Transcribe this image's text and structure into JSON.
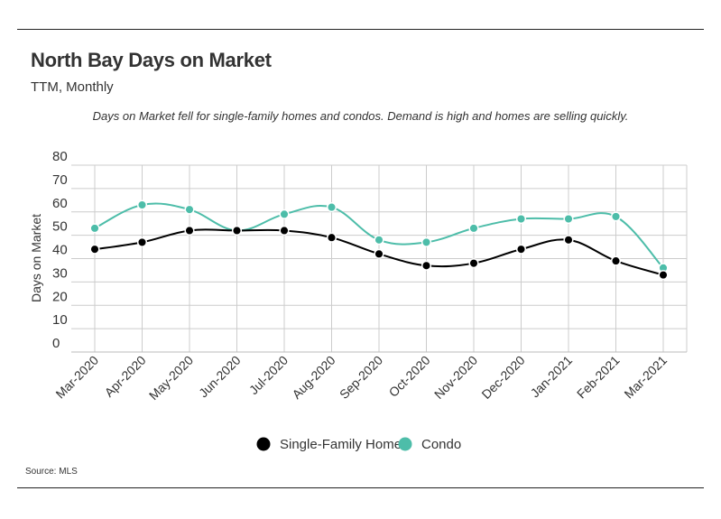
{
  "header": {
    "title": "North Bay Days on Market",
    "subtitle": "TTM, Monthly",
    "note": "Days on Market fell for single-family homes and condos. Demand is high and homes are selling quickly."
  },
  "footer": {
    "source": "Source:  MLS"
  },
  "chart_data": {
    "type": "line",
    "title": "North Bay Days on Market",
    "subtitle": "TTM, Monthly",
    "xlabel": "",
    "ylabel": "Days on Market",
    "ylim": [
      0,
      80
    ],
    "yticks": [
      0,
      10,
      20,
      30,
      40,
      50,
      60,
      70,
      80
    ],
    "grid": true,
    "legend": "bottom-center",
    "categories": [
      "Mar-2020",
      "Apr-2020",
      "May-2020",
      "Jun-2020",
      "Jul-2020",
      "Aug-2020",
      "Sep-2020",
      "Oct-2020",
      "Nov-2020",
      "Dec-2020",
      "Jan-2021",
      "Feb-2021",
      "Mar-2021"
    ],
    "series": [
      {
        "name": "Single-Family Home",
        "color": "#000000",
        "values": [
          44,
          47,
          52,
          52,
          52,
          49,
          42,
          37,
          38,
          44,
          48,
          39,
          33
        ]
      },
      {
        "name": "Condo",
        "color": "#4dbda9",
        "values": [
          53,
          63,
          61,
          52,
          59,
          62,
          48,
          47,
          53,
          57,
          57,
          58,
          36
        ]
      }
    ]
  }
}
